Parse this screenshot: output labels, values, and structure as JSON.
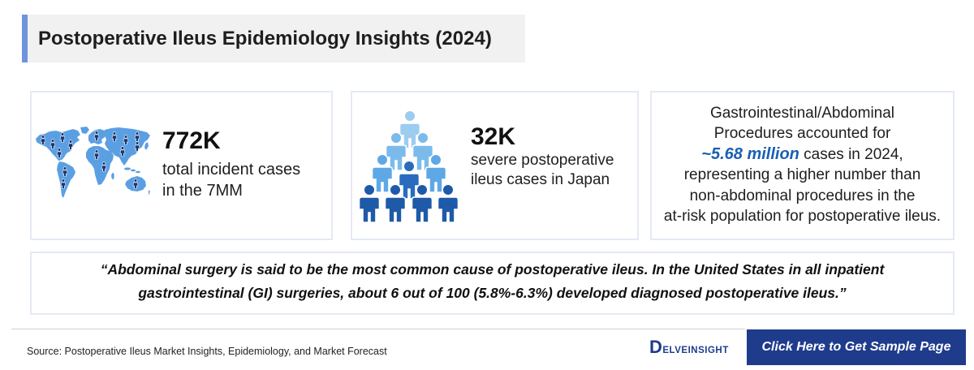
{
  "header": {
    "title": "Postoperative Ileus Epidemiology Insights (2024)"
  },
  "cards": [
    {
      "icon": "world-map-icon",
      "stat": "772K",
      "lines": [
        "total incident cases",
        "in the 7MM"
      ]
    },
    {
      "icon": "people-pyramid-icon",
      "stat": "32K",
      "lines": [
        "severe postoperative",
        "ileus cases in Japan"
      ]
    }
  ],
  "gi_card": {
    "line1": "Gastrointestinal/Abdominal",
    "line2": "Procedures accounted for",
    "highlight": "~5.68 million",
    "line3_rest": " cases in 2024,",
    "line4": "representing a higher number than",
    "line5": "non-abdominal procedures in the",
    "line6": "at-risk population for postoperative ileus."
  },
  "quote": {
    "lines": [
      "“Abdominal surgery is said to be the most common cause of postoperative ileus. In the United States in all inpatient",
      "gastrointestinal (GI) surgeries, about 6 out of 100 (5.8%-6.3%) developed diagnosed postoperative ileus.”"
    ]
  },
  "footer": {
    "source": "Source: Postoperative Ileus Market Insights, Epidemiology, and Market Forecast",
    "logo_text": "DELVEINSIGHT",
    "cta_label": "Click Here to Get Sample Page"
  },
  "colors": {
    "accent_bar": "#7094dc",
    "card_border": "#e4eaf4",
    "highlight": "#1a5fb4",
    "navy": "#1f3b8c",
    "map_land": "#5b9fe3",
    "map_pin": "#1b3670",
    "person_shades": [
      "#9ccdf0",
      "#7bbbec",
      "#5fa8e6",
      "#2a6bbf",
      "#1f5aa8"
    ]
  }
}
